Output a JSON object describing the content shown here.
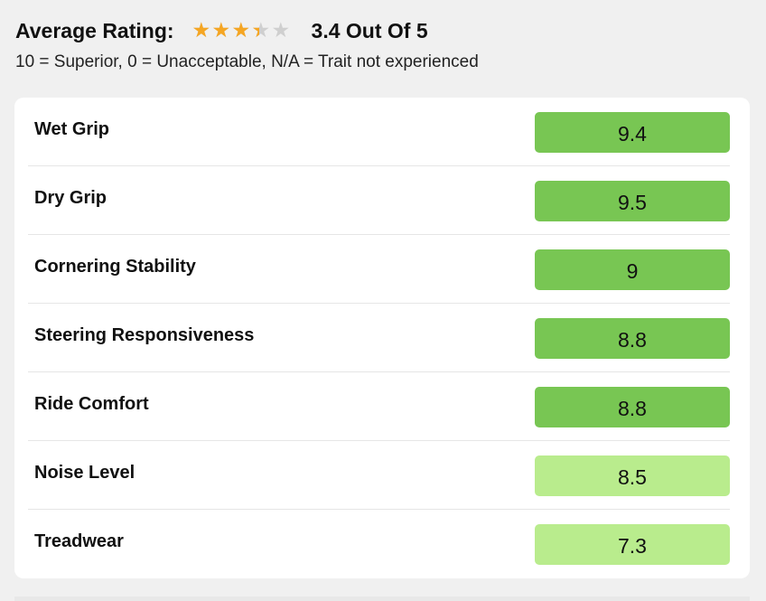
{
  "header": {
    "label": "Average Rating:",
    "rating_value": 3.4,
    "rating_max": 5,
    "rating_text": "3.4 Out Of 5",
    "star_glyph": "★",
    "star_filled_color": "#f5a623",
    "star_empty_color": "#cfcfcf"
  },
  "legend": {
    "text": "10 = Superior, 0 = Unacceptable, N/A = Trait not experienced"
  },
  "colors": {
    "score_high": "#78c653",
    "score_medium": "#b9ec8d"
  },
  "ratings": [
    {
      "label": "Wet Grip",
      "value": "9.4",
      "level": "high"
    },
    {
      "label": "Dry Grip",
      "value": "9.5",
      "level": "high"
    },
    {
      "label": "Cornering Stability",
      "value": "9",
      "level": "high"
    },
    {
      "label": "Steering Responsiveness",
      "value": "8.8",
      "level": "high"
    },
    {
      "label": "Ride Comfort",
      "value": "8.8",
      "level": "high"
    },
    {
      "label": "Noise Level",
      "value": "8.5",
      "level": "medium"
    },
    {
      "label": "Treadwear",
      "value": "7.3",
      "level": "medium"
    }
  ]
}
